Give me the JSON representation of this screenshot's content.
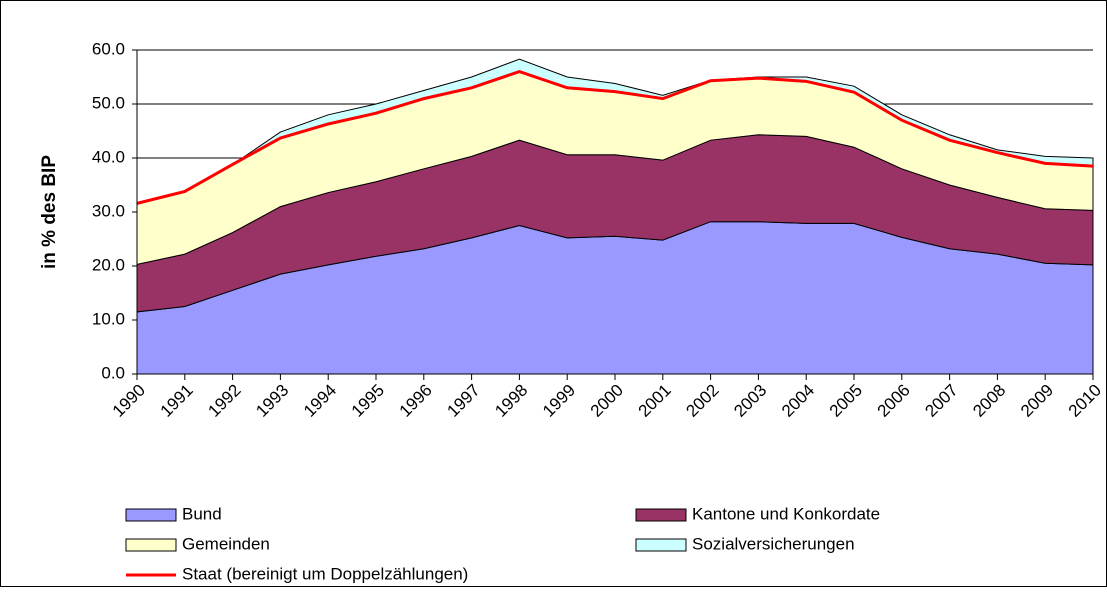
{
  "chart_data": {
    "type": "stacked_area",
    "ylabel": "in % des BIP",
    "categories": [
      "1990",
      "1991",
      "1992",
      "1993",
      "1994",
      "1995",
      "1996",
      "1997",
      "1998",
      "1999",
      "2000",
      "2001",
      "2002",
      "2003",
      "2004",
      "2005",
      "2006",
      "2007",
      "2008",
      "2009",
      "2010"
    ],
    "series": [
      {
        "name": "Bund",
        "color": "#9999ff",
        "values": [
          11.5,
          12.5,
          15.5,
          18.5,
          20.2,
          21.8,
          23.2,
          25.2,
          27.5,
          25.2,
          25.5,
          24.8,
          28.2,
          28.2,
          27.9,
          27.9,
          25.3,
          23.2,
          22.2,
          20.5,
          20.2
        ]
      },
      {
        "name": "Kantone und Konkordate",
        "color": "#993366",
        "values": [
          8.8,
          9.7,
          10.7,
          12.5,
          13.4,
          13.8,
          14.8,
          15.1,
          15.8,
          15.4,
          15.1,
          14.8,
          15.1,
          16.1,
          16.1,
          14.1,
          12.7,
          11.8,
          10.5,
          10.1,
          10.1
        ]
      },
      {
        "name": "Gemeinden",
        "color": "#ffffcc",
        "values": [
          11.3,
          11.6,
          12.6,
          12.7,
          12.7,
          12.7,
          13.0,
          12.7,
          12.7,
          12.4,
          11.7,
          11.4,
          11.0,
          10.5,
          10.2,
          10.2,
          9.0,
          8.3,
          8.3,
          8.4,
          8.2
        ]
      },
      {
        "name": "Sozialversicherungen",
        "color": "#ccffff",
        "values": [
          0,
          0,
          0,
          1.1,
          1.7,
          1.7,
          1.5,
          2.0,
          2.3,
          2.0,
          1.5,
          0.6,
          0.1,
          0.2,
          0.8,
          1.1,
          1.0,
          1.0,
          0.5,
          1.3,
          1.5
        ]
      }
    ],
    "line": {
      "name": "Staat (bereinigt um Doppelzählungen)",
      "color": "#ff0000",
      "values": [
        31.6,
        33.8,
        38.8,
        43.7,
        46.3,
        48.3,
        51.0,
        53.0,
        56.0,
        53.0,
        52.3,
        51.0,
        54.3,
        54.8,
        54.2,
        52.2,
        47.0,
        43.3,
        41.0,
        39.0,
        38.5
      ]
    },
    "ylim": [
      0,
      60
    ],
    "yticks": [
      {
        "value": 0,
        "label": "0.0"
      },
      {
        "value": 10,
        "label": "10.0"
      },
      {
        "value": 20,
        "label": "20.0"
      },
      {
        "value": 30,
        "label": "30.0"
      },
      {
        "value": 40,
        "label": "40.0"
      },
      {
        "value": 50,
        "label": "50.0"
      },
      {
        "value": 60,
        "label": "60.0"
      }
    ],
    "grid": true
  }
}
